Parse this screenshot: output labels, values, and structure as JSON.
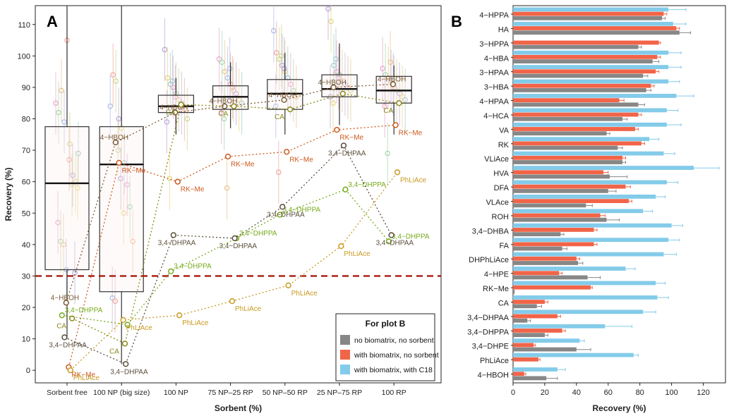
{
  "panels": {
    "a": "A",
    "b": "B"
  },
  "chart_data": [
    {
      "type": "boxplot",
      "panel": "A",
      "xlabel": "Sorbent (%)",
      "ylabel": "Recovery (%)",
      "ylim": [
        -4,
        116
      ],
      "yticks": [
        0,
        10,
        20,
        30,
        40,
        50,
        60,
        70,
        80,
        90,
        100,
        110
      ],
      "categories": [
        "Sorbent free",
        "100 NP (big size)",
        "100 NP",
        "75 NP–25 RP",
        "50 NP–50 RP",
        "25 NP–75 RP",
        "100 RP"
      ],
      "threshold": 30,
      "boxes": [
        {
          "q1": 32,
          "median": 59.5,
          "q3": 77.5,
          "lo": 10,
          "hi": 116
        },
        {
          "q1": 25,
          "median": 65.5,
          "q3": 77.5,
          "lo": 2,
          "hi": 116
        },
        {
          "q1": 82,
          "median": 84,
          "q3": 87.5,
          "lo": 75,
          "hi": 93
        },
        {
          "q1": 83,
          "median": 87,
          "q3": 90.5,
          "lo": 77,
          "hi": 98
        },
        {
          "q1": 83,
          "median": 88,
          "q3": 92.5,
          "lo": 75,
          "hi": 101
        },
        {
          "q1": 87,
          "median": 89.5,
          "q3": 94,
          "lo": 78,
          "hi": 104
        },
        {
          "q1": 85,
          "median": 89,
          "q3": 93.5,
          "lo": 75,
          "hi": 97
        }
      ],
      "highlighted": [
        {
          "name": "4−HBOH",
          "color": "#7a5a34",
          "values": [
            21.5,
            72.5,
            82,
            84,
            86,
            90,
            91
          ]
        },
        {
          "name": "RK−Me",
          "color": "#cc5a1e",
          "values": [
            1,
            66,
            60,
            68,
            69.5,
            76.5,
            78
          ]
        },
        {
          "name": "CA",
          "color": "#8a8a18",
          "values": [
            16.5,
            8.5,
            84.5,
            84,
            83,
            88,
            85
          ]
        },
        {
          "name": "3,4−DHPPA",
          "color": "#77ab1c",
          "values": [
            17.5,
            14.5,
            31.5,
            42,
            49.5,
            57.5,
            41
          ]
        },
        {
          "name": "3,4−DHPAA",
          "color": "#5c4e3c",
          "values": [
            10.5,
            2,
            43,
            42,
            52,
            71.5,
            43
          ]
        },
        {
          "name": "PhLiAce",
          "color": "#c99a22",
          "values": [
            0,
            16,
            17.5,
            22,
            27,
            39.5,
            63
          ]
        }
      ],
      "highlight_labels": [
        [
          "4−HBOH",
          "3,4−DHPPA",
          "CA",
          "3,4−DHPAA",
          "RK−Me",
          "PhLiAce"
        ],
        [
          "4−HBOH",
          "RK−Me",
          "PhLiAce",
          "CA",
          "3,4−DHPAA"
        ],
        [
          "CA",
          "4−HBOH",
          "RK−Me",
          "3,4−DHPAA",
          "3,4−DHPPA",
          "PhLiAce"
        ],
        [
          "4−HBOH",
          "CA",
          "RK−Me",
          "3,4−DHPPA",
          "3,4−DHPAA",
          "PhLiAce"
        ],
        [
          "4−HBOH",
          "CA",
          "RK−Me",
          "3,4−DHPAA",
          "3,4−DHPPA",
          "PhLiAce"
        ],
        [
          "4−HBOH",
          "RK−Me",
          "3,4−DHPAA",
          "3,4−DHPPA",
          "PhLiAce"
        ],
        [
          "4−HBOH",
          "CA",
          "RK−Me",
          "PhLiAce",
          "3,4−DHPAA",
          "3,4−DHPPA"
        ]
      ],
      "other_points": [
        [
          85,
          82,
          89,
          79,
          105,
          72,
          62,
          60,
          69,
          47,
          41,
          40,
          32,
          67,
          59,
          31,
          58
        ],
        [
          84,
          94,
          92,
          80,
          77,
          66,
          59,
          52,
          41,
          23,
          22,
          70,
          61,
          50
        ],
        [
          102,
          93,
          91,
          90,
          88,
          86,
          85,
          83,
          80,
          79,
          61,
          92,
          87
        ],
        [
          99,
          98,
          95,
          93,
          91,
          89,
          88,
          86,
          85,
          82,
          80,
          58,
          96,
          90
        ],
        [
          108,
          101,
          99,
          97,
          95,
          93,
          91,
          89,
          87,
          84,
          63,
          100,
          96
        ],
        [
          115,
          111,
          97,
          95,
          94,
          92,
          91,
          90,
          89,
          87,
          85,
          99,
          93
        ],
        [
          96,
          94,
          93,
          92,
          90,
          89,
          88,
          87,
          86,
          84,
          69,
          98,
          91
        ]
      ]
    },
    {
      "type": "bar",
      "panel": "B",
      "orientation": "horizontal",
      "xlabel": "Recovery (%)",
      "xlim": [
        0,
        134
      ],
      "xticks": [
        0,
        20,
        40,
        60,
        80,
        100,
        120
      ],
      "legend_title": "For plot B",
      "categories": [
        "4−HPPA",
        "HA",
        "3−HPPA",
        "4−HBA",
        "3−HPAA",
        "3−HBA",
        "4−HPAA",
        "4−HCA",
        "VA",
        "RK",
        "VLiAce",
        "HVA",
        "DFA",
        "VLAce",
        "ROH",
        "3,4−DHBA",
        "FA",
        "DHPhLiAce",
        "4−HPE",
        "RK−Me",
        "CA",
        "3,4−DHPAA",
        "3,4−DHPPA",
        "3,4−DHPE",
        "PhLiAce",
        "4−HBOH"
      ],
      "series": [
        {
          "name": "with biomatrix, with C18",
          "color": "#83cbea",
          "values": [
            98,
            101,
            0,
            98,
            98,
            98,
            103,
            97,
            97,
            86,
            95,
            114,
            97,
            90,
            82,
            100,
            98,
            95,
            71,
            90,
            91,
            82,
            58,
            42,
            76,
            28
          ],
          "errors": [
            11,
            8,
            0,
            8,
            8,
            7,
            11,
            7,
            9,
            6,
            7,
            16,
            7,
            6,
            6,
            7,
            7,
            8,
            6,
            6,
            7,
            8,
            17,
            3,
            3,
            5
          ]
        },
        {
          "name": "with biomatrix, no sorbent",
          "color": "#f26448",
          "values": [
            95,
            103,
            92,
            91,
            90,
            87,
            67,
            79,
            77,
            81,
            69,
            57,
            71,
            73,
            55,
            51,
            51,
            40,
            29,
            49,
            20,
            28,
            31,
            13,
            16,
            7
          ],
          "errors": [
            2,
            2,
            1,
            2,
            2,
            2,
            3,
            2,
            2,
            2,
            2,
            3,
            3,
            2,
            3,
            2,
            2,
            2,
            2,
            1,
            2,
            2,
            2,
            1,
            1,
            1
          ]
        },
        {
          "name": "no biomatrix, no sorbent",
          "color": "#878787",
          "values": [
            94,
            105,
            79,
            88,
            82,
            84,
            79,
            69,
            59,
            66,
            69,
            61,
            60,
            46,
            59,
            30,
            31,
            41,
            47,
            1,
            15,
            9,
            20,
            40,
            0,
            21
          ],
          "errors": [
            2,
            7,
            2,
            4,
            3,
            3,
            4,
            3,
            2,
            3,
            2,
            11,
            5,
            4,
            8,
            2,
            3,
            3,
            8,
            0,
            3,
            2,
            2,
            9,
            0,
            7
          ]
        }
      ]
    }
  ]
}
